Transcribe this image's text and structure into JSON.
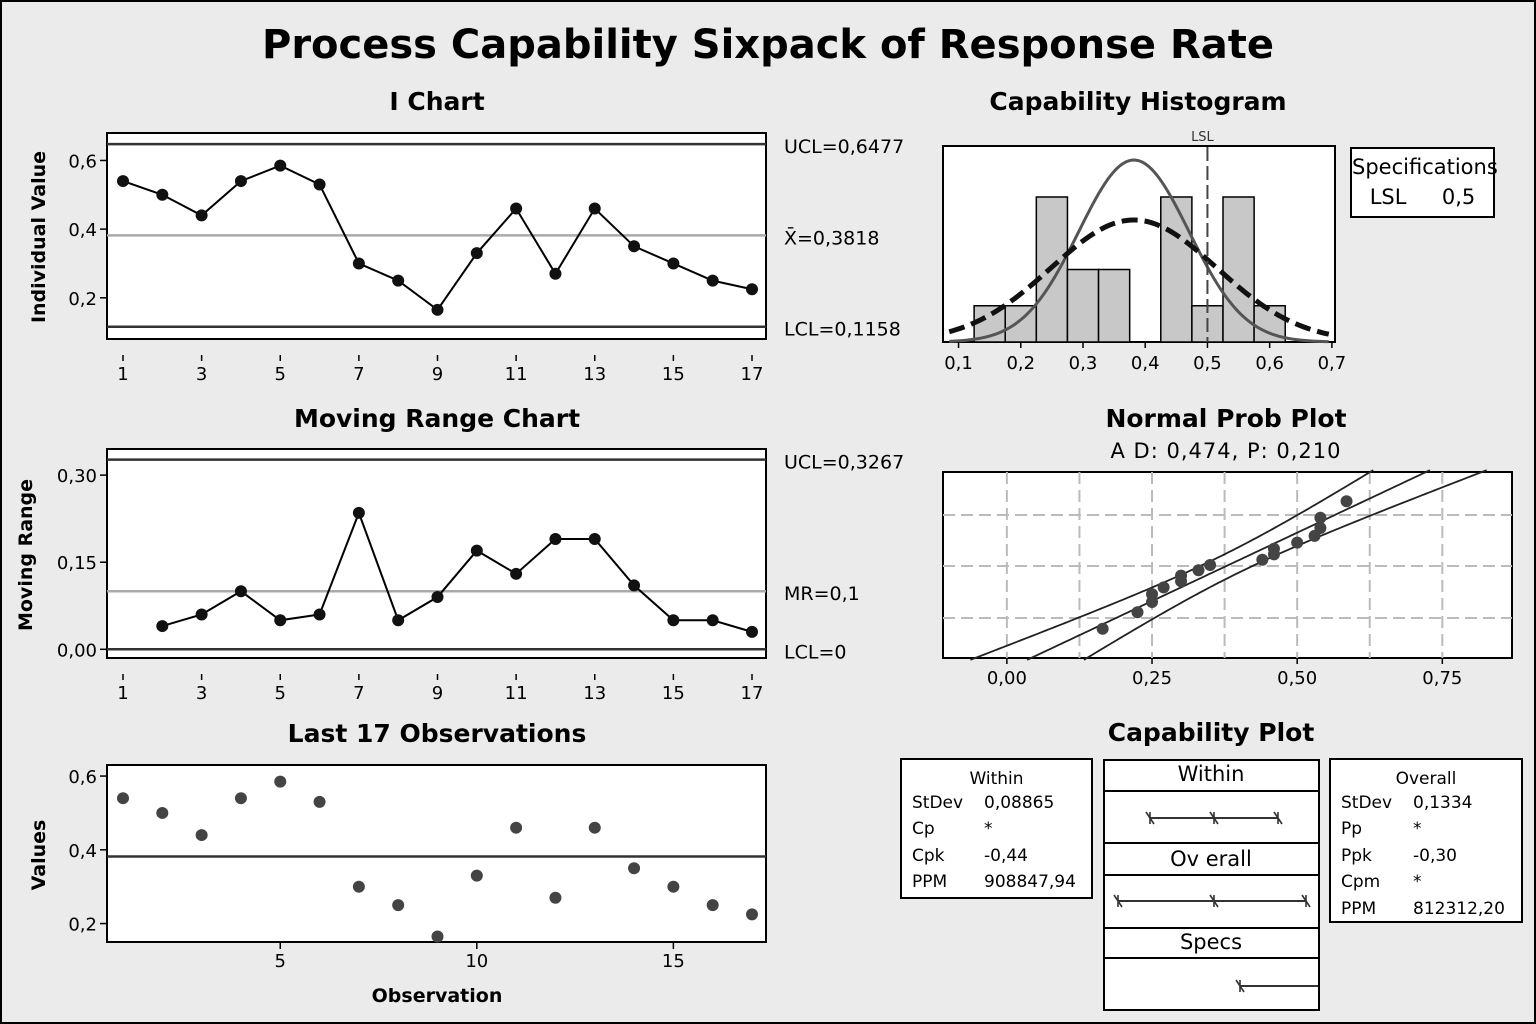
{
  "title": "Process Capability Sixpack of Response Rate",
  "chart_data": [
    {
      "type": "line",
      "title": "I Chart",
      "ylabel": "Individual Value",
      "x": [
        1,
        2,
        3,
        4,
        5,
        6,
        7,
        8,
        9,
        10,
        11,
        12,
        13,
        14,
        15,
        16,
        17
      ],
      "values": [
        0.54,
        0.5,
        0.44,
        0.54,
        0.585,
        0.53,
        0.3,
        0.25,
        0.165,
        0.33,
        0.46,
        0.27,
        0.46,
        0.35,
        0.3,
        0.25,
        0.225
      ],
      "xticks": [
        "1",
        "3",
        "5",
        "7",
        "9",
        "11",
        "13",
        "15",
        "17"
      ],
      "yticks": [
        "0,2",
        "0,4",
        "0,6"
      ],
      "ylim": [
        0.08,
        0.68
      ],
      "ucl": 0.6477,
      "center": 0.3818,
      "lcl": 0.1158,
      "ucl_label": "UCL=0,6477",
      "center_label": "X̄=0,3818",
      "lcl_label": "LCL=0,1158"
    },
    {
      "type": "line",
      "title": "Moving Range Chart",
      "ylabel": "Moving Range",
      "x": [
        2,
        3,
        4,
        5,
        6,
        7,
        8,
        9,
        10,
        11,
        12,
        13,
        14,
        15,
        16,
        17
      ],
      "values": [
        0.04,
        0.06,
        0.1,
        0.05,
        0.06,
        0.235,
        0.05,
        0.09,
        0.17,
        0.13,
        0.19,
        0.19,
        0.11,
        0.05,
        0.05,
        0.03
      ],
      "xticks": [
        "1",
        "3",
        "5",
        "7",
        "9",
        "11",
        "13",
        "15",
        "17"
      ],
      "yticks": [
        "0,00",
        "0,15",
        "0,30"
      ],
      "ylim": [
        -0.015,
        0.345
      ],
      "ucl": 0.3267,
      "center": 0.1,
      "lcl": 0,
      "ucl_label": "UCL=0,3267",
      "center_label": "MR=0,1",
      "lcl_label": "LCL=0"
    },
    {
      "type": "scatter",
      "title": "Last 17 Observations",
      "ylabel": "Values",
      "xlabel": "Observation",
      "x": [
        1,
        2,
        3,
        4,
        5,
        6,
        7,
        8,
        9,
        10,
        11,
        12,
        13,
        14,
        15,
        16,
        17
      ],
      "values": [
        0.54,
        0.5,
        0.44,
        0.54,
        0.585,
        0.53,
        0.3,
        0.25,
        0.165,
        0.33,
        0.46,
        0.27,
        0.46,
        0.35,
        0.3,
        0.25,
        0.225
      ],
      "xticks": [
        "5",
        "10",
        "15"
      ],
      "yticks": [
        "0,2",
        "0,4",
        "0,6"
      ],
      "ylim": [
        0.15,
        0.63
      ],
      "center": 0.3818
    },
    {
      "type": "bar",
      "title": "Capability Histogram",
      "bins": [
        [
          0.125,
          0.175,
          1
        ],
        [
          0.175,
          0.225,
          1
        ],
        [
          0.225,
          0.275,
          4
        ],
        [
          0.275,
          0.325,
          2
        ],
        [
          0.325,
          0.375,
          2
        ],
        [
          0.425,
          0.475,
          4
        ],
        [
          0.475,
          0.525,
          1
        ],
        [
          0.525,
          0.575,
          4
        ],
        [
          0.575,
          0.625,
          1
        ]
      ],
      "xticks": [
        "0,1",
        "0,2",
        "0,3",
        "0,4",
        "0,5",
        "0,6",
        "0,7"
      ],
      "xlim": [
        0.075,
        0.705
      ],
      "lsl": 0.5,
      "lsl_label": "LSL",
      "within_sd": 0.08865,
      "overall_sd": 0.1334,
      "mean": 0.3818
    },
    {
      "type": "scatter",
      "title": "Normal Prob Plot",
      "subtitle": "A D: 0,474, P: 0,210",
      "values": [
        0.165,
        0.225,
        0.25,
        0.25,
        0.27,
        0.3,
        0.3,
        0.33,
        0.35,
        0.44,
        0.46,
        0.46,
        0.5,
        0.53,
        0.54,
        0.54,
        0.585
      ],
      "xticks": [
        "0,00",
        "0,25",
        "0,50",
        "0,75"
      ],
      "xlim": [
        -0.11,
        0.87
      ]
    }
  ],
  "specifications": {
    "title": "Specifications",
    "label": "LSL",
    "value": "0,5"
  },
  "capability_plot": {
    "title": "Capability Plot",
    "within_label": "Within",
    "overall_label": "Ov erall",
    "specs_label": "Specs"
  },
  "within_stats": {
    "title": "Within",
    "rows": [
      {
        "label": "StDev",
        "value": "0,08865"
      },
      {
        "label": "Cp",
        "value": "*"
      },
      {
        "label": "Cpk",
        "value": "-0,44"
      },
      {
        "label": "PPM",
        "value": "908847,94"
      }
    ]
  },
  "overall_stats": {
    "title": "Overall",
    "rows": [
      {
        "label": "StDev",
        "value": "0,1334"
      },
      {
        "label": "Pp",
        "value": "*"
      },
      {
        "label": "Ppk",
        "value": "-0,30"
      },
      {
        "label": "Cpm",
        "value": "*"
      },
      {
        "label": "PPM",
        "value": "812312,20"
      }
    ]
  }
}
